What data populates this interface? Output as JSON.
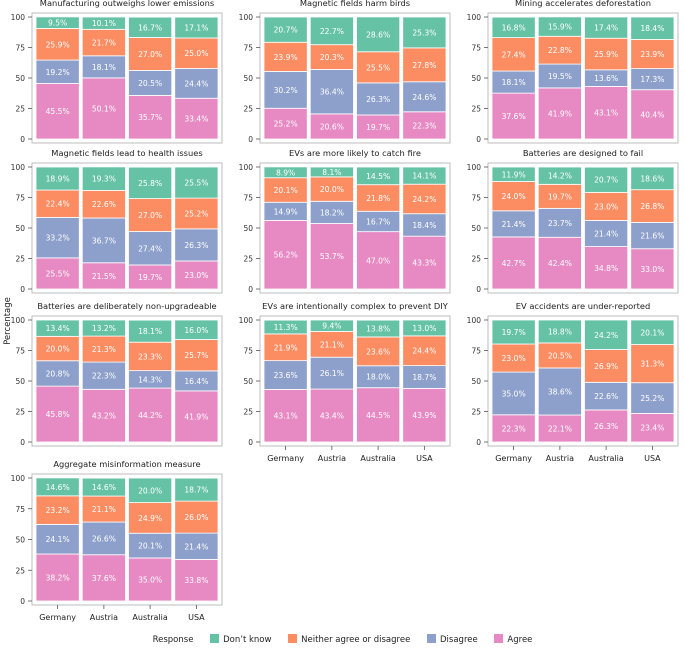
{
  "chart_data": {
    "type": "bar",
    "stacked": true,
    "orientation": "vertical",
    "ylabel": "Percentage",
    "ylim": [
      0,
      100
    ],
    "yticks": [
      0,
      25,
      50,
      75,
      100
    ],
    "categories": [
      "Germany",
      "Austria",
      "Australia",
      "USA"
    ],
    "legend": {
      "title": "Response",
      "position": "bottom",
      "entries": [
        {
          "key": "dont_know",
          "label": "Don’t know",
          "color": "#66c2a5"
        },
        {
          "key": "neither",
          "label": "Neither agree or disagree",
          "color": "#fc8d62"
        },
        {
          "key": "disagree",
          "label": "Disagree",
          "color": "#8da0cb"
        },
        {
          "key": "agree",
          "label": "Agree",
          "color": "#e78ac3"
        }
      ]
    },
    "stack_order_bottom_to_top": [
      "agree",
      "disagree",
      "neither",
      "dont_know"
    ],
    "panels": [
      {
        "title": "Manufacturing outweighs lower emissions",
        "agree": [
          45.5,
          50.1,
          35.7,
          33.4
        ],
        "disagree": [
          19.2,
          18.1,
          20.5,
          24.4
        ],
        "neither": [
          25.9,
          21.7,
          27.0,
          25.0
        ],
        "dont_know": [
          9.5,
          10.1,
          16.7,
          17.1
        ]
      },
      {
        "title": "Magnetic fields harm birds",
        "agree": [
          25.2,
          20.6,
          19.7,
          22.3
        ],
        "disagree": [
          30.2,
          36.4,
          26.3,
          24.6
        ],
        "neither": [
          23.9,
          20.3,
          25.5,
          27.8
        ],
        "dont_know": [
          20.7,
          22.7,
          28.6,
          25.3
        ]
      },
      {
        "title": "Mining accelerates deforestation",
        "agree": [
          37.6,
          41.9,
          43.1,
          40.4
        ],
        "disagree": [
          18.1,
          19.5,
          13.6,
          17.3
        ],
        "neither": [
          27.4,
          22.8,
          25.9,
          23.9
        ],
        "dont_know": [
          16.8,
          15.9,
          17.4,
          18.4
        ]
      },
      {
        "title": "Magnetic fields lead to health issues",
        "agree": [
          25.5,
          21.5,
          19.7,
          23.0
        ],
        "disagree": [
          33.2,
          36.7,
          27.4,
          26.3
        ],
        "neither": [
          22.4,
          22.6,
          27.0,
          25.2
        ],
        "dont_know": [
          18.9,
          19.3,
          25.8,
          25.5
        ]
      },
      {
        "title": "EVs are more likely to catch fire",
        "agree": [
          56.2,
          53.7,
          47.0,
          43.3
        ],
        "disagree": [
          14.9,
          18.2,
          16.7,
          18.4
        ],
        "neither": [
          20.1,
          20.0,
          21.8,
          24.2
        ],
        "dont_know": [
          8.9,
          8.1,
          14.5,
          14.1
        ]
      },
      {
        "title": "Batteries are designed to fail",
        "agree": [
          42.7,
          42.4,
          34.8,
          33.0
        ],
        "disagree": [
          21.4,
          23.7,
          21.4,
          21.6
        ],
        "neither": [
          24.0,
          19.7,
          23.0,
          26.8
        ],
        "dont_know": [
          11.9,
          14.2,
          20.7,
          18.6
        ]
      },
      {
        "title": "Batteries are deliberately non-upgradeable",
        "agree": [
          45.8,
          43.2,
          44.2,
          41.9
        ],
        "disagree": [
          20.8,
          22.3,
          14.3,
          16.4
        ],
        "neither": [
          20.0,
          21.3,
          23.3,
          25.7
        ],
        "dont_know": [
          13.4,
          13.2,
          18.1,
          16.0
        ]
      },
      {
        "title": "EVs are intentionally complex to prevent DIY",
        "agree": [
          43.1,
          43.4,
          44.5,
          43.9
        ],
        "disagree": [
          23.6,
          26.1,
          18.0,
          18.7
        ],
        "neither": [
          21.9,
          21.1,
          23.6,
          24.4
        ],
        "dont_know": [
          11.3,
          9.4,
          13.8,
          13.0
        ]
      },
      {
        "title": "EV accidents are under-reported",
        "agree": [
          22.3,
          22.1,
          26.3,
          23.4
        ],
        "disagree": [
          35.0,
          38.6,
          22.6,
          25.2
        ],
        "neither": [
          23.0,
          20.5,
          26.9,
          31.3
        ],
        "dont_know": [
          19.7,
          18.8,
          24.2,
          20.1
        ]
      },
      {
        "title": "Aggregate misinformation measure",
        "agree": [
          38.2,
          37.6,
          35.0,
          33.8
        ],
        "disagree": [
          24.1,
          26.6,
          20.1,
          21.4
        ],
        "neither": [
          23.2,
          21.1,
          24.9,
          26.0
        ],
        "dont_know": [
          14.6,
          14.6,
          20.0,
          18.7
        ]
      }
    ],
    "x_tick_labels_shown_on_panels": [
      7,
      8,
      9
    ],
    "value_label_suffix": "%"
  }
}
